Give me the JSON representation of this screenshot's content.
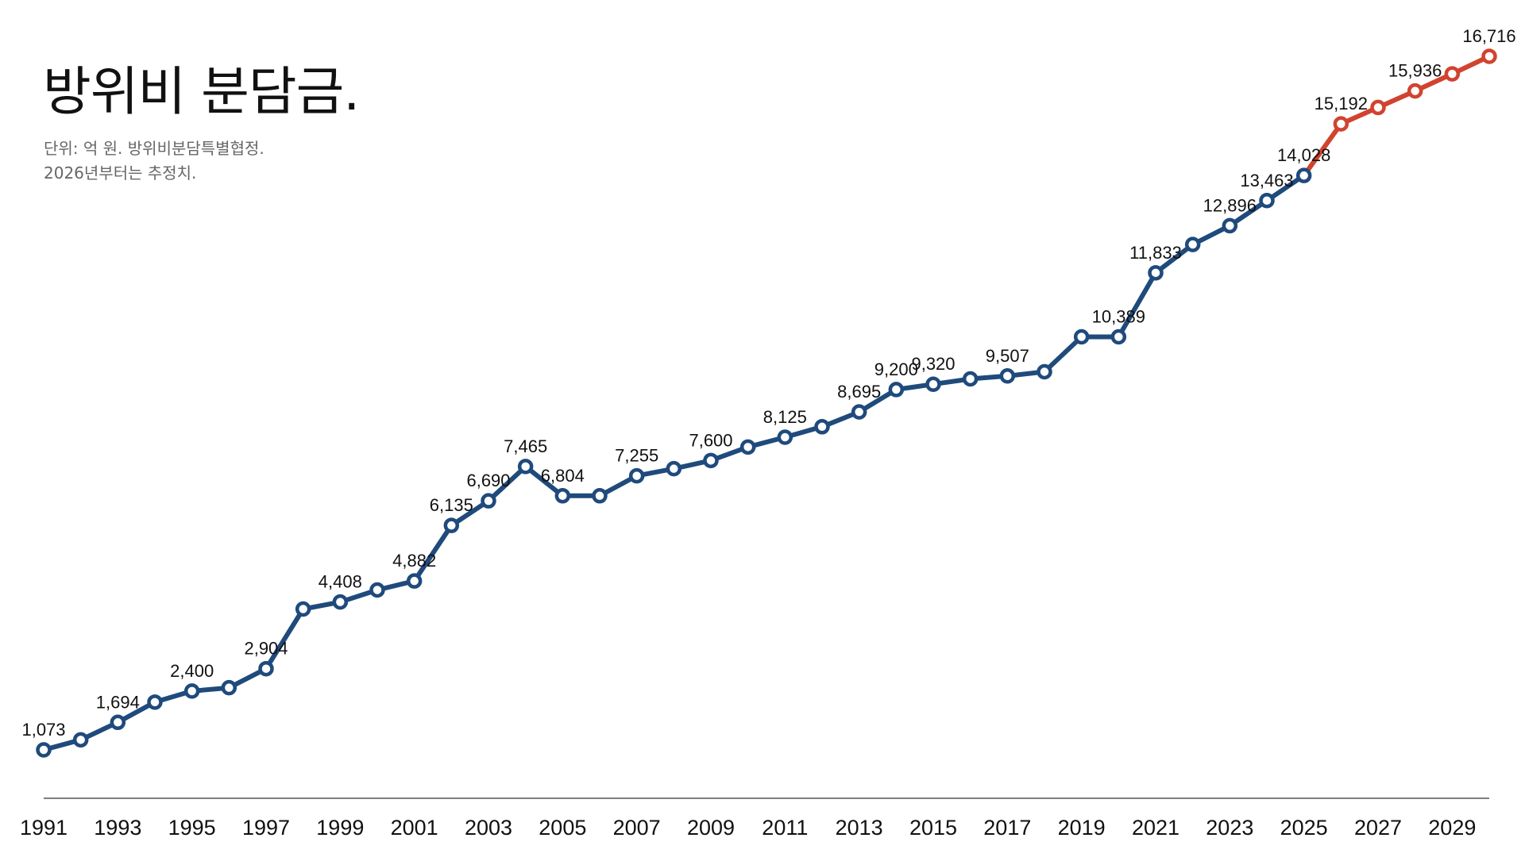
{
  "title": "방위비 분담금.",
  "subtitle_lines": [
    "단위: 억 원. 방위비분담특별협정.",
    "2026년부터는 추정치."
  ],
  "colors": {
    "actual": "#1f4a7c",
    "estimate": "#d1432f",
    "axis": "#555555",
    "text": "#111111"
  },
  "chart_data": {
    "type": "line",
    "title": "방위비 분담금.",
    "xlabel": "",
    "ylabel": "",
    "unit": "억 원",
    "x": [
      1991,
      1992,
      1993,
      1994,
      1995,
      1996,
      1997,
      1998,
      1999,
      2000,
      2001,
      2002,
      2003,
      2004,
      2005,
      2006,
      2007,
      2008,
      2009,
      2010,
      2011,
      2012,
      2013,
      2014,
      2015,
      2016,
      2017,
      2018,
      2019,
      2020,
      2021,
      2022,
      2023,
      2024,
      2025,
      2026,
      2027,
      2028,
      2029,
      2030
    ],
    "series": [
      {
        "name": "",
        "values": [
          1073,
          1300,
          1694,
          2150,
          2400,
          2475,
          2904,
          4250,
          4408,
          4680,
          4882,
          6135,
          6690,
          7465,
          6804,
          6804,
          7255,
          7415,
          7600,
          7904,
          8125,
          8361,
          8695,
          9200,
          9320,
          9441,
          9507,
          9602,
          10389,
          10389,
          11833,
          12472,
          12896,
          13463,
          14028,
          15192,
          15563,
          15936,
          16320,
          16716
        ],
        "estimate_from": 2025
      }
    ],
    "labeled_years": [
      1991,
      1993,
      1995,
      1997,
      1999,
      2001,
      2002,
      2003,
      2004,
      2005,
      2007,
      2009,
      2011,
      2013,
      2014,
      2015,
      2017,
      2020,
      2021,
      2023,
      2024,
      2025,
      2026,
      2028,
      2030
    ],
    "xticks": [
      1991,
      1993,
      1995,
      1997,
      1999,
      2001,
      2003,
      2005,
      2007,
      2009,
      2011,
      2013,
      2015,
      2017,
      2019,
      2021,
      2023,
      2025,
      2027,
      2029
    ],
    "xlim": [
      1991,
      2030
    ],
    "ylim": [
      1073,
      16716
    ],
    "grid": false,
    "legend": "none"
  }
}
